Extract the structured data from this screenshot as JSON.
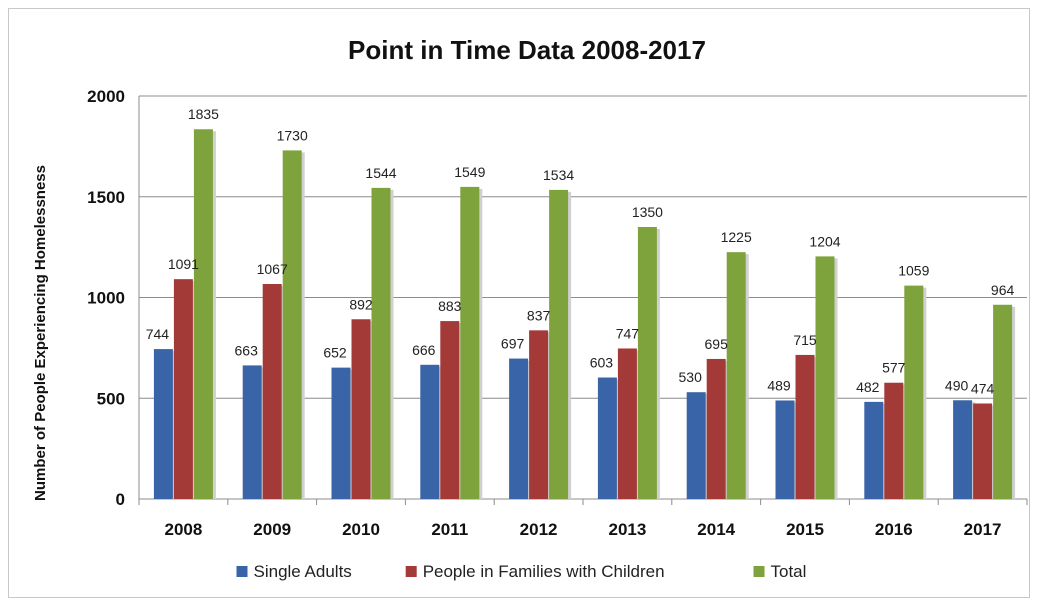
{
  "chart_data": {
    "type": "bar",
    "title": "Point in Time Data 2008-2017",
    "xlabel": "",
    "ylabel": "Number of People Experiencing Homelessness",
    "ylim": [
      0,
      2000
    ],
    "yticks": [
      0,
      500,
      1000,
      1500,
      2000
    ],
    "grid": true,
    "legend_position": "bottom",
    "categories": [
      "2008",
      "2009",
      "2010",
      "2011",
      "2012",
      "2013",
      "2014",
      "2015",
      "2016",
      "2017"
    ],
    "series": [
      {
        "name": "Single Adults",
        "color": "#3a64a8",
        "values": [
          744,
          663,
          652,
          666,
          697,
          603,
          530,
          489,
          482,
          490
        ]
      },
      {
        "name": "People in Families with Children",
        "color": "#a33a38",
        "values": [
          1091,
          1067,
          892,
          883,
          837,
          747,
          695,
          715,
          577,
          474
        ]
      },
      {
        "name": "Total",
        "color": "#7fa33c",
        "values": [
          1835,
          1730,
          1544,
          1549,
          1534,
          1350,
          1225,
          1204,
          1059,
          964
        ]
      }
    ]
  }
}
